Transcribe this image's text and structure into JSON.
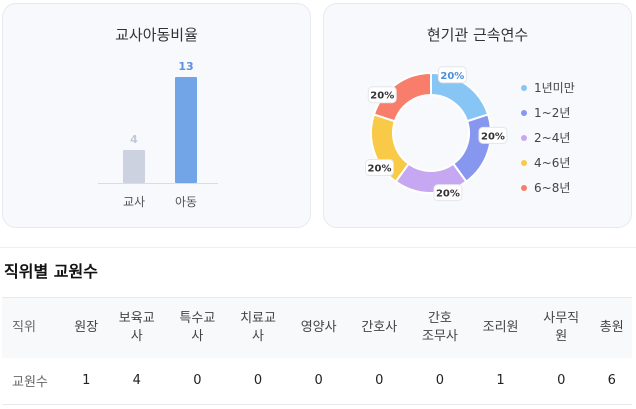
{
  "teacher_ratio": {
    "title": "교사아동비율",
    "categories": [
      "교사",
      "아동"
    ],
    "values": [
      4,
      13
    ],
    "colors": [
      "#ccd2e0",
      "#72a5e8"
    ],
    "value_colors": [
      "#c2c8d4",
      "#5a92dd"
    ]
  },
  "tenure": {
    "title": "현기관 근속연수",
    "legend": [
      "1년미만",
      "1~2년",
      "2~4년",
      "4~6년",
      "6~8년"
    ],
    "values": [
      20,
      20,
      20,
      20,
      20
    ],
    "labels": [
      "20%",
      "20%",
      "20%",
      "20%",
      "20%"
    ],
    "colors": [
      "#86c5f4",
      "#8797f0",
      "#c6a8f2",
      "#f9c948",
      "#f97d6b"
    ]
  },
  "chart_data": [
    {
      "type": "bar",
      "title": "교사아동비율",
      "categories": [
        "교사",
        "아동"
      ],
      "values": [
        4,
        13
      ]
    },
    {
      "type": "pie",
      "title": "현기관 근속연수",
      "categories": [
        "1년미만",
        "1~2년",
        "2~4년",
        "4~6년",
        "6~8년"
      ],
      "values": [
        20,
        20,
        20,
        20,
        20
      ]
    }
  ],
  "staff_section": {
    "title": "직위별 교원수",
    "row_header": "직위",
    "columns": [
      "원장",
      "보육교\n사",
      "특수교\n사",
      "치료교\n사",
      "영양사",
      "간호사",
      "간호\n조무사",
      "조리원",
      "사무직\n원",
      "총원"
    ],
    "row_label": "교원수",
    "values": [
      "1",
      "4",
      "0",
      "0",
      "0",
      "0",
      "0",
      "1",
      "0",
      "6"
    ]
  }
}
